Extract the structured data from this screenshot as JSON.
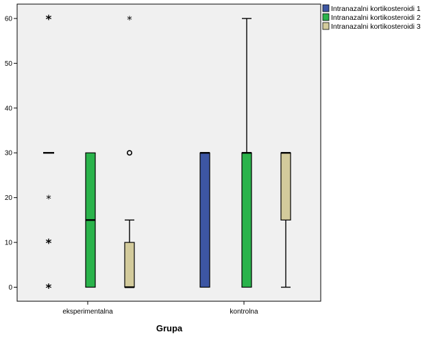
{
  "chart_data": {
    "type": "boxplot",
    "title": "",
    "xlabel": "Grupa",
    "ylabel": "",
    "ylim": [
      -3,
      65
    ],
    "y_ticks": [
      0,
      10,
      20,
      30,
      40,
      50,
      60
    ],
    "grid": false,
    "legend_position": "top-right",
    "plot_background": "#f0f0f0",
    "categories": [
      "eksperimentalna",
      "kontrolna"
    ],
    "series": [
      {
        "name": "Intranazalni kortikosteroidi 1",
        "color": "#3d56a3",
        "boxes": [
          {
            "category": "eksperimentalna",
            "min": 30,
            "q1": 30,
            "median": 30,
            "q3": 30,
            "max": 30,
            "outliers": [],
            "extremes": [
              0,
              10,
              20,
              60
            ]
          },
          {
            "category": "kontrolna",
            "min": 0,
            "q1": 0,
            "median": 30,
            "q3": 30,
            "max": 30,
            "outliers": [],
            "extremes": []
          }
        ]
      },
      {
        "name": "Intranazalni kortikosteroidi 2",
        "color": "#2ab34b",
        "boxes": [
          {
            "category": "eksperimentalna",
            "min": 0,
            "q1": 0,
            "median": 15,
            "q3": 30,
            "max": 30,
            "outliers": [],
            "extremes": []
          },
          {
            "category": "kontrolna",
            "min": 0,
            "q1": 0,
            "median": 30,
            "q3": 30,
            "max": 60,
            "outliers": [],
            "extremes": []
          }
        ]
      },
      {
        "name": "Intranazalni kortikosteroidi 3",
        "color": "#d3cb9c",
        "boxes": [
          {
            "category": "eksperimentalna",
            "min": 0,
            "q1": 0,
            "median": 0,
            "q3": 10,
            "max": 15,
            "outliers": [
              30
            ],
            "extremes": [
              60
            ]
          },
          {
            "category": "kontrolna",
            "min": 0,
            "q1": 15,
            "median": 30,
            "q3": 30,
            "max": 30,
            "outliers": [],
            "extremes": []
          }
        ]
      }
    ]
  }
}
